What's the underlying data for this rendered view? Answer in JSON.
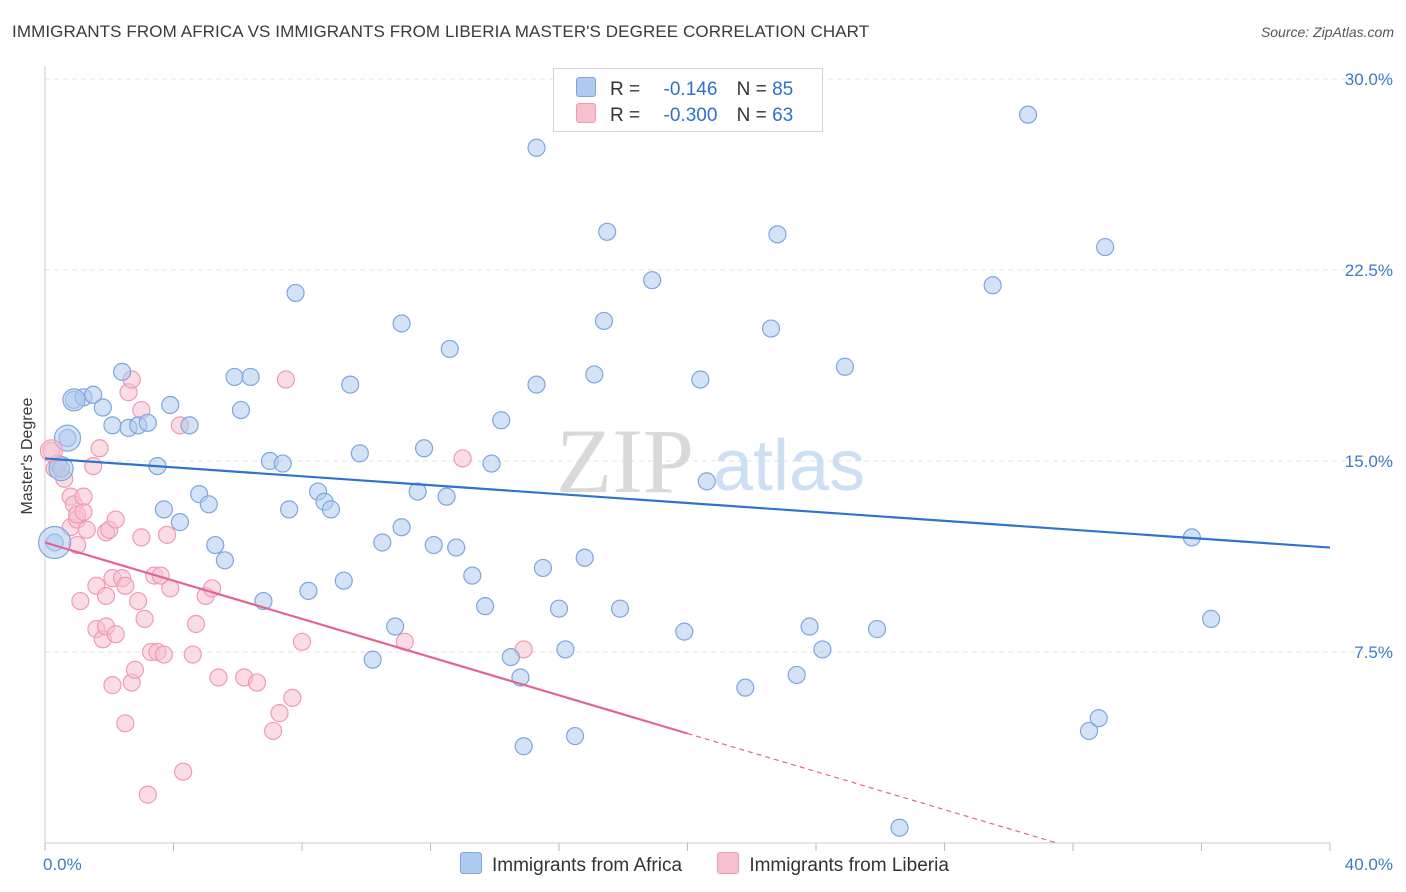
{
  "title": "IMMIGRANTS FROM AFRICA VS IMMIGRANTS FROM LIBERIA MASTER'S DEGREE CORRELATION CHART",
  "source": "Source: ZipAtlas.com",
  "watermark": {
    "zip": "ZIP",
    "atlas": "atlas"
  },
  "colors": {
    "africa_fill": "#aecbef",
    "africa_stroke": "#7ea6dd",
    "africa_line": "#2f73cc",
    "liberia_fill": "#f7c0cf",
    "liberia_stroke": "#ef9ab3",
    "liberia_line": "#e0668f",
    "tick_text": "#3d7ac8",
    "grid": "#e3e3e3"
  },
  "legend": {
    "rows": [
      {
        "r_label": "R =",
        "r_value": "-0.146",
        "n_label": "N =",
        "n_value": "85"
      },
      {
        "r_label": "R =",
        "r_value": "-0.300",
        "n_label": "N =",
        "n_value": "63"
      }
    ]
  },
  "bottom_legend": {
    "africa": "Immigrants from Africa",
    "liberia": "Immigrants from Liberia"
  },
  "chart_data": {
    "type": "scatter",
    "title": "IMMIGRANTS FROM AFRICA VS IMMIGRANTS FROM LIBERIA MASTER'S DEGREE CORRELATION CHART",
    "xlabel": "",
    "ylabel": "Master's Degree",
    "xlim": [
      0,
      40
    ],
    "ylim": [
      0,
      30
    ],
    "x_tick_labels": {
      "min": "0.0%",
      "max": "40.0%"
    },
    "y_ticks": [
      7.5,
      15.0,
      22.5,
      30.0
    ],
    "y_tick_labels": [
      "7.5%",
      "15.0%",
      "22.5%",
      "30.0%"
    ],
    "grid": true,
    "legend_position": "top-center",
    "series": [
      {
        "name": "Immigrants from Africa",
        "r": -0.146,
        "n": 85,
        "trend": {
          "x": [
            0,
            40
          ],
          "y": [
            15.1,
            11.6
          ]
        },
        "points": [
          [
            0.3,
            11.8
          ],
          [
            0.5,
            14.7
          ],
          [
            0.7,
            15.9
          ],
          [
            0.9,
            17.4
          ],
          [
            1.2,
            17.5
          ],
          [
            1.5,
            17.6
          ],
          [
            1.8,
            17.1
          ],
          [
            2.1,
            16.4
          ],
          [
            2.4,
            18.5
          ],
          [
            2.6,
            16.3
          ],
          [
            2.9,
            16.4
          ],
          [
            3.2,
            16.5
          ],
          [
            3.5,
            14.8
          ],
          [
            3.7,
            13.1
          ],
          [
            3.9,
            17.2
          ],
          [
            4.2,
            12.6
          ],
          [
            4.5,
            16.4
          ],
          [
            4.8,
            13.7
          ],
          [
            5.1,
            13.3
          ],
          [
            5.3,
            11.7
          ],
          [
            5.6,
            11.1
          ],
          [
            5.9,
            18.3
          ],
          [
            6.1,
            17.0
          ],
          [
            6.4,
            18.3
          ],
          [
            6.8,
            9.5
          ],
          [
            7.0,
            15.0
          ],
          [
            7.4,
            14.9
          ],
          [
            7.6,
            13.1
          ],
          [
            7.8,
            21.6
          ],
          [
            8.2,
            9.9
          ],
          [
            8.5,
            13.8
          ],
          [
            8.7,
            13.4
          ],
          [
            8.9,
            13.1
          ],
          [
            9.3,
            10.3
          ],
          [
            9.5,
            18.0
          ],
          [
            9.8,
            15.3
          ],
          [
            10.2,
            7.2
          ],
          [
            10.5,
            11.8
          ],
          [
            10.9,
            8.5
          ],
          [
            11.1,
            12.4
          ],
          [
            11.1,
            20.4
          ],
          [
            11.6,
            13.8
          ],
          [
            11.8,
            15.5
          ],
          [
            12.1,
            11.7
          ],
          [
            12.5,
            13.6
          ],
          [
            12.6,
            19.4
          ],
          [
            12.8,
            11.6
          ],
          [
            13.3,
            10.5
          ],
          [
            13.9,
            14.9
          ],
          [
            13.7,
            9.3
          ],
          [
            14.2,
            16.6
          ],
          [
            14.5,
            7.3
          ],
          [
            14.8,
            6.5
          ],
          [
            14.9,
            3.8
          ],
          [
            15.3,
            18.0
          ],
          [
            15.3,
            27.3
          ],
          [
            15.5,
            10.8
          ],
          [
            16.0,
            9.2
          ],
          [
            16.2,
            7.6
          ],
          [
            16.5,
            4.2
          ],
          [
            16.8,
            11.2
          ],
          [
            17.1,
            18.4
          ],
          [
            17.4,
            20.5
          ],
          [
            17.5,
            24.0
          ],
          [
            17.9,
            9.2
          ],
          [
            18.9,
            22.1
          ],
          [
            19.9,
            8.3
          ],
          [
            20.4,
            18.2
          ],
          [
            20.6,
            14.2
          ],
          [
            21.8,
            6.1
          ],
          [
            22.6,
            20.2
          ],
          [
            22.8,
            23.9
          ],
          [
            23.4,
            6.6
          ],
          [
            23.8,
            8.5
          ],
          [
            24.2,
            7.6
          ],
          [
            24.9,
            18.7
          ],
          [
            25.9,
            8.4
          ],
          [
            29.5,
            21.9
          ],
          [
            30.6,
            28.6
          ],
          [
            32.5,
            4.4
          ],
          [
            32.8,
            4.9
          ],
          [
            33.0,
            23.4
          ],
          [
            35.7,
            12.0
          ],
          [
            36.3,
            8.8
          ],
          [
            26.6,
            0.6
          ]
        ]
      },
      {
        "name": "Immigrants from Liberia",
        "r": -0.3,
        "n": 63,
        "trend": {
          "x": [
            0,
            20
          ],
          "y": [
            11.8,
            4.3
          ]
        },
        "trend_extension": {
          "x": [
            20,
            31.5
          ],
          "y": [
            4.3,
            0
          ]
        },
        "points": [
          [
            0.2,
            15.4
          ],
          [
            0.3,
            14.7
          ],
          [
            0.4,
            14.9
          ],
          [
            0.6,
            14.3
          ],
          [
            0.8,
            12.4
          ],
          [
            0.8,
            13.6
          ],
          [
            0.9,
            13.3
          ],
          [
            1.0,
            11.7
          ],
          [
            1.0,
            12.7
          ],
          [
            1.0,
            12.9
          ],
          [
            1.1,
            9.5
          ],
          [
            1.2,
            13.0
          ],
          [
            1.2,
            13.6
          ],
          [
            1.3,
            12.3
          ],
          [
            1.5,
            14.8
          ],
          [
            1.6,
            8.4
          ],
          [
            1.6,
            10.1
          ],
          [
            1.7,
            15.5
          ],
          [
            1.8,
            8.0
          ],
          [
            1.9,
            8.5
          ],
          [
            1.9,
            9.7
          ],
          [
            1.9,
            12.2
          ],
          [
            2.0,
            12.3
          ],
          [
            2.1,
            6.2
          ],
          [
            2.1,
            10.4
          ],
          [
            2.2,
            8.2
          ],
          [
            2.2,
            12.7
          ],
          [
            2.4,
            10.4
          ],
          [
            2.5,
            10.1
          ],
          [
            2.5,
            4.7
          ],
          [
            2.6,
            17.7
          ],
          [
            2.7,
            6.3
          ],
          [
            2.7,
            18.2
          ],
          [
            2.8,
            6.8
          ],
          [
            2.9,
            9.5
          ],
          [
            3.0,
            17.0
          ],
          [
            3.0,
            12.0
          ],
          [
            3.1,
            8.8
          ],
          [
            3.2,
            1.9
          ],
          [
            3.3,
            7.5
          ],
          [
            3.4,
            10.5
          ],
          [
            3.5,
            7.5
          ],
          [
            3.6,
            10.5
          ],
          [
            3.7,
            7.4
          ],
          [
            3.8,
            12.1
          ],
          [
            3.9,
            10.0
          ],
          [
            4.2,
            16.4
          ],
          [
            4.3,
            2.8
          ],
          [
            4.6,
            7.4
          ],
          [
            4.7,
            8.6
          ],
          [
            5.0,
            9.7
          ],
          [
            5.2,
            10.0
          ],
          [
            5.4,
            6.5
          ],
          [
            6.2,
            6.5
          ],
          [
            6.6,
            6.3
          ],
          [
            7.1,
            4.4
          ],
          [
            7.3,
            5.1
          ],
          [
            7.5,
            18.2
          ],
          [
            7.7,
            5.7
          ],
          [
            8.0,
            7.9
          ],
          [
            11.2,
            7.9
          ],
          [
            13.0,
            15.1
          ],
          [
            14.9,
            7.6
          ]
        ]
      }
    ]
  }
}
